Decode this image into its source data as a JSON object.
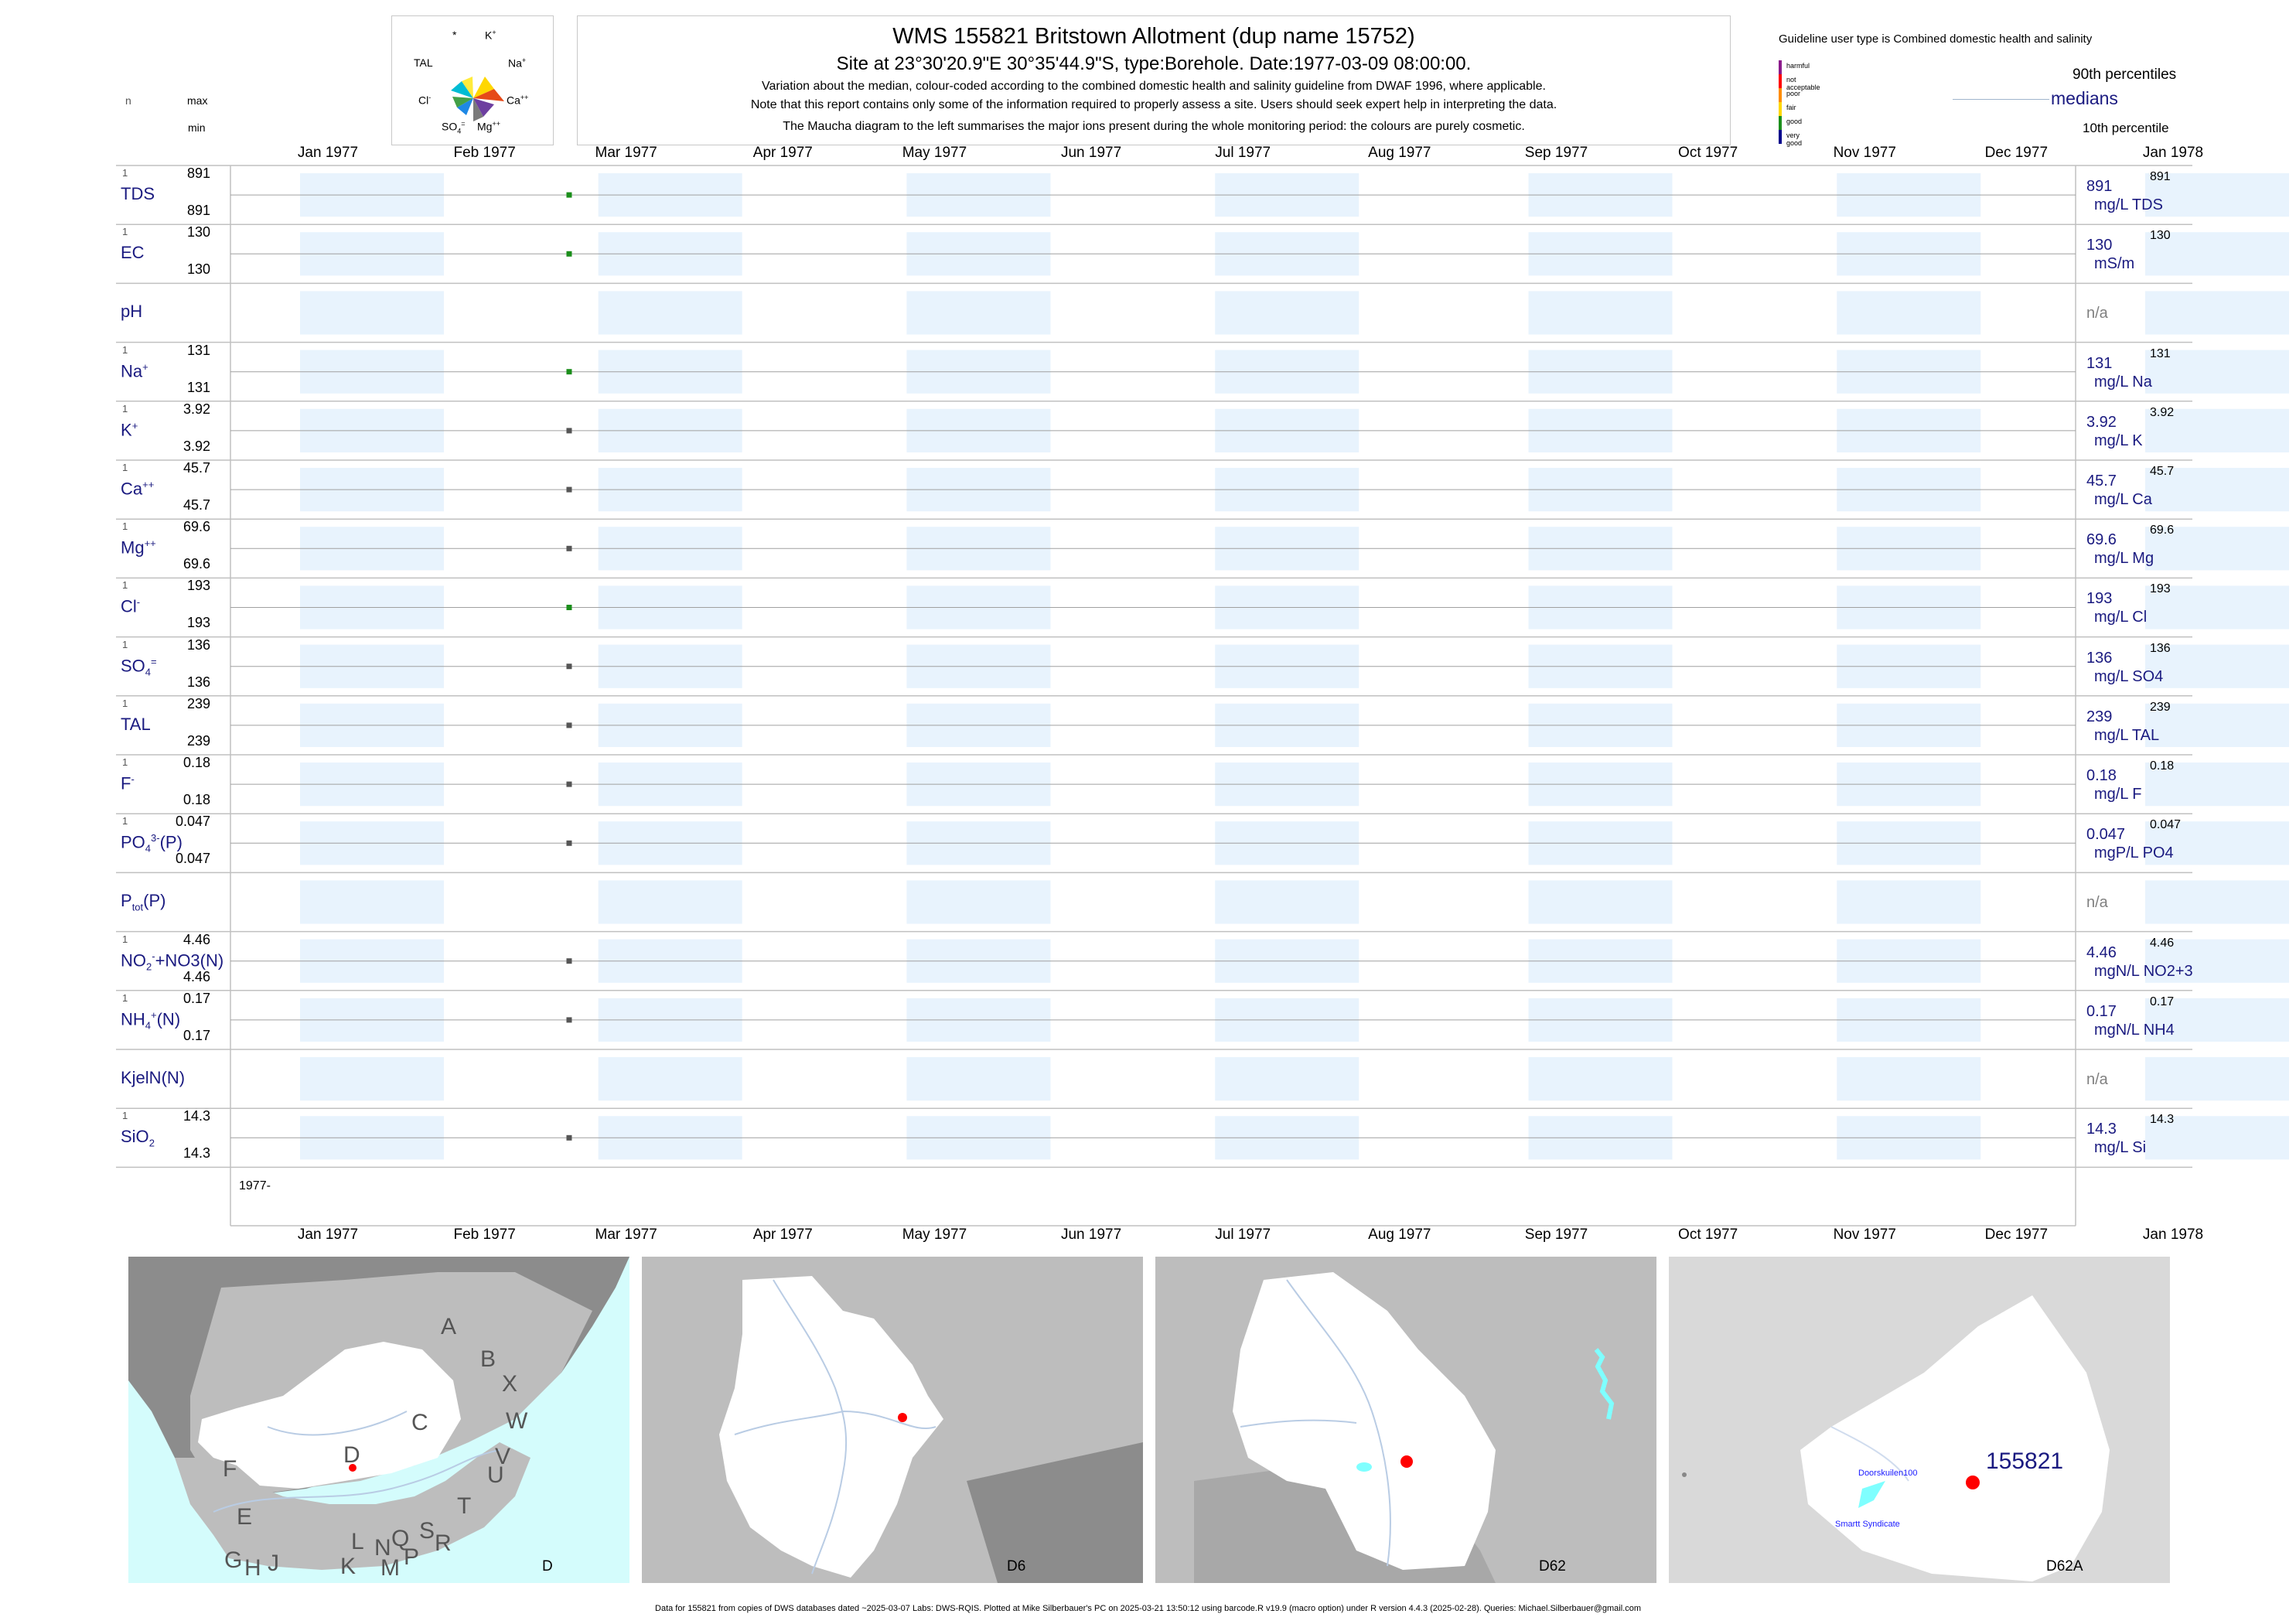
{
  "header": {
    "title": "WMS 155821  Britstown Allotment (dup name 15752)",
    "subtitle": "Site at 23°30'20.9\"E 30°35'44.9\"S, type:Borehole. Date:1977-03-09 08:00:00.",
    "note1": "Variation about the median,  colour-coded according to the combined domestic health and salinity guideline from DWAF 1996, where applicable.",
    "note2": "Note that this report contains only some of the information required to properly assess a site. Users should seek expert help in interpreting the data.",
    "note3": "The Maucha diagram to the left summarises the major ions present during the whole monitoring period: the colours are purely cosmetic."
  },
  "maucha": {
    "labels": {
      "star": "*",
      "k": "K+",
      "tal": "TAL",
      "na": "Na+",
      "cl": "Cl-",
      "ca": "Ca++",
      "so4": "SO4=",
      "mg": "Mg++"
    },
    "colors": [
      "#ffd700",
      "#e64a19",
      "#43a047",
      "#1e88e5",
      "#6d3fa0",
      "#00bcd4",
      "#7a7a7a",
      "#f06292"
    ]
  },
  "guideline": {
    "title": "Guideline user type is Combined domestic health and salinity",
    "levels": [
      {
        "label": "harmful",
        "color": "#8b1a8b"
      },
      {
        "label": "not acceptable",
        "color": "#ff0000"
      },
      {
        "label": "poor",
        "color": "#ff8c00"
      },
      {
        "label": "fair",
        "color": "#ffd700"
      },
      {
        "label": "good",
        "color": "#1b8e1b"
      },
      {
        "label": "very good",
        "color": "#00008b"
      }
    ],
    "p90_label": "90th percentiles",
    "median_label": "medians",
    "p10_label": "10th percentile"
  },
  "left_header": {
    "n": "n",
    "max": "max",
    "min": "min"
  },
  "months_top": [
    "Jan 1977",
    "Feb 1977",
    "Mar 1977",
    "Apr 1977",
    "May 1977",
    "Jun 1977",
    "Jul 1977",
    "Aug 1977",
    "Sep 1977",
    "Oct 1977",
    "Nov 1977",
    "Dec 1977",
    "Jan 1978"
  ],
  "months_bottom": [
    "Jan 1977",
    "Feb 1977",
    "Mar 1977",
    "Apr 1977",
    "May 1977",
    "Jun 1977",
    "Jul 1977",
    "Aug 1977",
    "Sep 1977",
    "Oct 1977",
    "Nov 1977",
    "Dec 1977",
    "Jan 1978"
  ],
  "year_label": "1977-",
  "rows": [
    {
      "name": "TDS",
      "sup": "",
      "sub": "",
      "tail": "",
      "n": "1",
      "max": "891",
      "min": "891",
      "median": "891",
      "p90": "891",
      "unit": "mg/L TDS",
      "na": ""
    },
    {
      "name": "EC",
      "sup": "",
      "sub": "",
      "tail": "",
      "n": "1",
      "max": "130",
      "min": "130",
      "median": "130",
      "p90": "130",
      "unit": "mS/m",
      "na": ""
    },
    {
      "name": "pH",
      "sup": "",
      "sub": "",
      "tail": "",
      "n": "",
      "max": "",
      "min": "",
      "median": "",
      "p90": "",
      "unit": "",
      "na": "n/a"
    },
    {
      "name": "Na",
      "sup": "+",
      "sub": "",
      "tail": "",
      "n": "1",
      "max": "131",
      "min": "131",
      "median": "131",
      "p90": "131",
      "unit": "mg/L Na",
      "na": ""
    },
    {
      "name": "K",
      "sup": "+",
      "sub": "",
      "tail": "",
      "n": "1",
      "max": "3.92",
      "min": "3.92",
      "median": "3.92",
      "p90": "3.92",
      "unit": "mg/L K",
      "na": ""
    },
    {
      "name": "Ca",
      "sup": "++",
      "sub": "",
      "tail": "",
      "n": "1",
      "max": "45.7",
      "min": "45.7",
      "median": "45.7",
      "p90": "45.7",
      "unit": "mg/L Ca",
      "na": ""
    },
    {
      "name": "Mg",
      "sup": "++",
      "sub": "",
      "tail": "",
      "n": "1",
      "max": "69.6",
      "min": "69.6",
      "median": "69.6",
      "p90": "69.6",
      "unit": "mg/L Mg",
      "na": ""
    },
    {
      "name": "Cl",
      "sup": "-",
      "sub": "",
      "tail": "",
      "n": "1",
      "max": "193",
      "min": "193",
      "median": "193",
      "p90": "193",
      "unit": "mg/L Cl",
      "na": ""
    },
    {
      "name": "SO",
      "sup": "=",
      "sub": "4",
      "tail": "",
      "n": "1",
      "max": "136",
      "min": "136",
      "median": "136",
      "p90": "136",
      "unit": "mg/L SO4",
      "na": ""
    },
    {
      "name": "TAL",
      "sup": "",
      "sub": "",
      "tail": "",
      "n": "1",
      "max": "239",
      "min": "239",
      "median": "239",
      "p90": "239",
      "unit": "mg/L TAL",
      "na": ""
    },
    {
      "name": "F",
      "sup": "-",
      "sub": "",
      "tail": "",
      "n": "1",
      "max": "0.18",
      "min": "0.18",
      "median": "0.18",
      "p90": "0.18",
      "unit": "mg/L F",
      "na": ""
    },
    {
      "name": "PO",
      "sup": "3-",
      "sub": "4",
      "tail": "(P)",
      "n": "1",
      "max": "0.047",
      "min": "0.047",
      "median": "0.047",
      "p90": "0.047",
      "unit": "mgP/L PO4",
      "na": ""
    },
    {
      "name": "P",
      "sup": "",
      "sub": "tot",
      "tail": "(P)",
      "n": "",
      "max": "",
      "min": "",
      "median": "",
      "p90": "",
      "unit": "",
      "na": "n/a"
    },
    {
      "name": "NO",
      "sup": "-",
      "sub": "2",
      "tail": "+NO3(N)",
      "n": "1",
      "max": "4.46",
      "min": "4.46",
      "median": "4.46",
      "p90": "4.46",
      "unit": "mgN/L NO2+3",
      "na": ""
    },
    {
      "name": "NH",
      "sup": "+",
      "sub": "4",
      "tail": "(N)",
      "n": "1",
      "max": "0.17",
      "min": "0.17",
      "median": "0.17",
      "p90": "0.17",
      "unit": "mgN/L NH4",
      "na": ""
    },
    {
      "name": "KjelN(N)",
      "sup": "",
      "sub": "",
      "tail": "",
      "n": "",
      "max": "",
      "min": "",
      "median": "",
      "p90": "",
      "unit": "",
      "na": "n/a"
    },
    {
      "name": "SiO",
      "sup": "",
      "sub": "2",
      "tail": "",
      "n": "1",
      "max": "14.3",
      "min": "14.3",
      "median": "14.3",
      "p90": "14.3",
      "unit": "mg/L Si",
      "na": ""
    }
  ],
  "chart_data": {
    "type": "scatter",
    "x_range": [
      "1977-01-01",
      "1978-01-01"
    ],
    "sample_date": "1977-03-09",
    "series": [
      {
        "name": "TDS",
        "x": [
          "1977-03-09"
        ],
        "y": [
          891
        ],
        "color": "#1b8e1b"
      },
      {
        "name": "EC",
        "x": [
          "1977-03-09"
        ],
        "y": [
          130
        ],
        "color": "#1b8e1b"
      },
      {
        "name": "Na+",
        "x": [
          "1977-03-09"
        ],
        "y": [
          131
        ],
        "color": "#1b8e1b"
      },
      {
        "name": "K+",
        "x": [
          "1977-03-09"
        ],
        "y": [
          3.92
        ],
        "color": "#555555"
      },
      {
        "name": "Ca++",
        "x": [
          "1977-03-09"
        ],
        "y": [
          45.7
        ],
        "color": "#555555"
      },
      {
        "name": "Mg++",
        "x": [
          "1977-03-09"
        ],
        "y": [
          69.6
        ],
        "color": "#555555"
      },
      {
        "name": "Cl-",
        "x": [
          "1977-03-09"
        ],
        "y": [
          193
        ],
        "color": "#1b8e1b"
      },
      {
        "name": "SO4=",
        "x": [
          "1977-03-09"
        ],
        "y": [
          136
        ],
        "color": "#555555"
      },
      {
        "name": "TAL",
        "x": [
          "1977-03-09"
        ],
        "y": [
          239
        ],
        "color": "#555555"
      },
      {
        "name": "F-",
        "x": [
          "1977-03-09"
        ],
        "y": [
          0.18
        ],
        "color": "#555555"
      },
      {
        "name": "PO43-(P)",
        "x": [
          "1977-03-09"
        ],
        "y": [
          0.047
        ],
        "color": "#555555"
      },
      {
        "name": "NO2+NO3(N)",
        "x": [
          "1977-03-09"
        ],
        "y": [
          4.46
        ],
        "color": "#555555"
      },
      {
        "name": "NH4+(N)",
        "x": [
          "1977-03-09"
        ],
        "y": [
          0.17
        ],
        "color": "#555555"
      },
      {
        "name": "SiO2",
        "x": [
          "1977-03-09"
        ],
        "y": [
          14.3
        ],
        "color": "#555555"
      }
    ],
    "band_color": "#e8f3fd",
    "grid": true
  },
  "maps": [
    {
      "label": "D",
      "regions": [
        "A",
        "B",
        "X",
        "C",
        "W",
        "V",
        "D",
        "U",
        "F",
        "T",
        "E",
        "S",
        "L",
        "N",
        "Q",
        "R",
        "G",
        "H",
        "J",
        "K",
        "M",
        "P"
      ]
    },
    {
      "label": "D6"
    },
    {
      "label": "D62"
    },
    {
      "label": "D62A",
      "site": "155821",
      "nearby": [
        "Doorskuilen100",
        "Smartt Syndicate"
      ]
    }
  ],
  "colors": {
    "sea": "#d4fcfc",
    "land_dark": "#8c8c8c",
    "land": "#bdbdbd",
    "catchment": "#ffffff",
    "river": "#b9cce4",
    "site": "#ff0000",
    "dam": "#7fffff"
  },
  "footer": "Data for 155821 from copies of DWS databases dated ~2025-03-07 Labs: DWS-RQIS. Plotted at Mike Silberbauer's PC on 2025-03-21 13:50:12 using barcode.R v19.9 (macro option) under R version 4.4.3 (2025-02-28). Queries: Michael.Silberbauer@gmail.com"
}
